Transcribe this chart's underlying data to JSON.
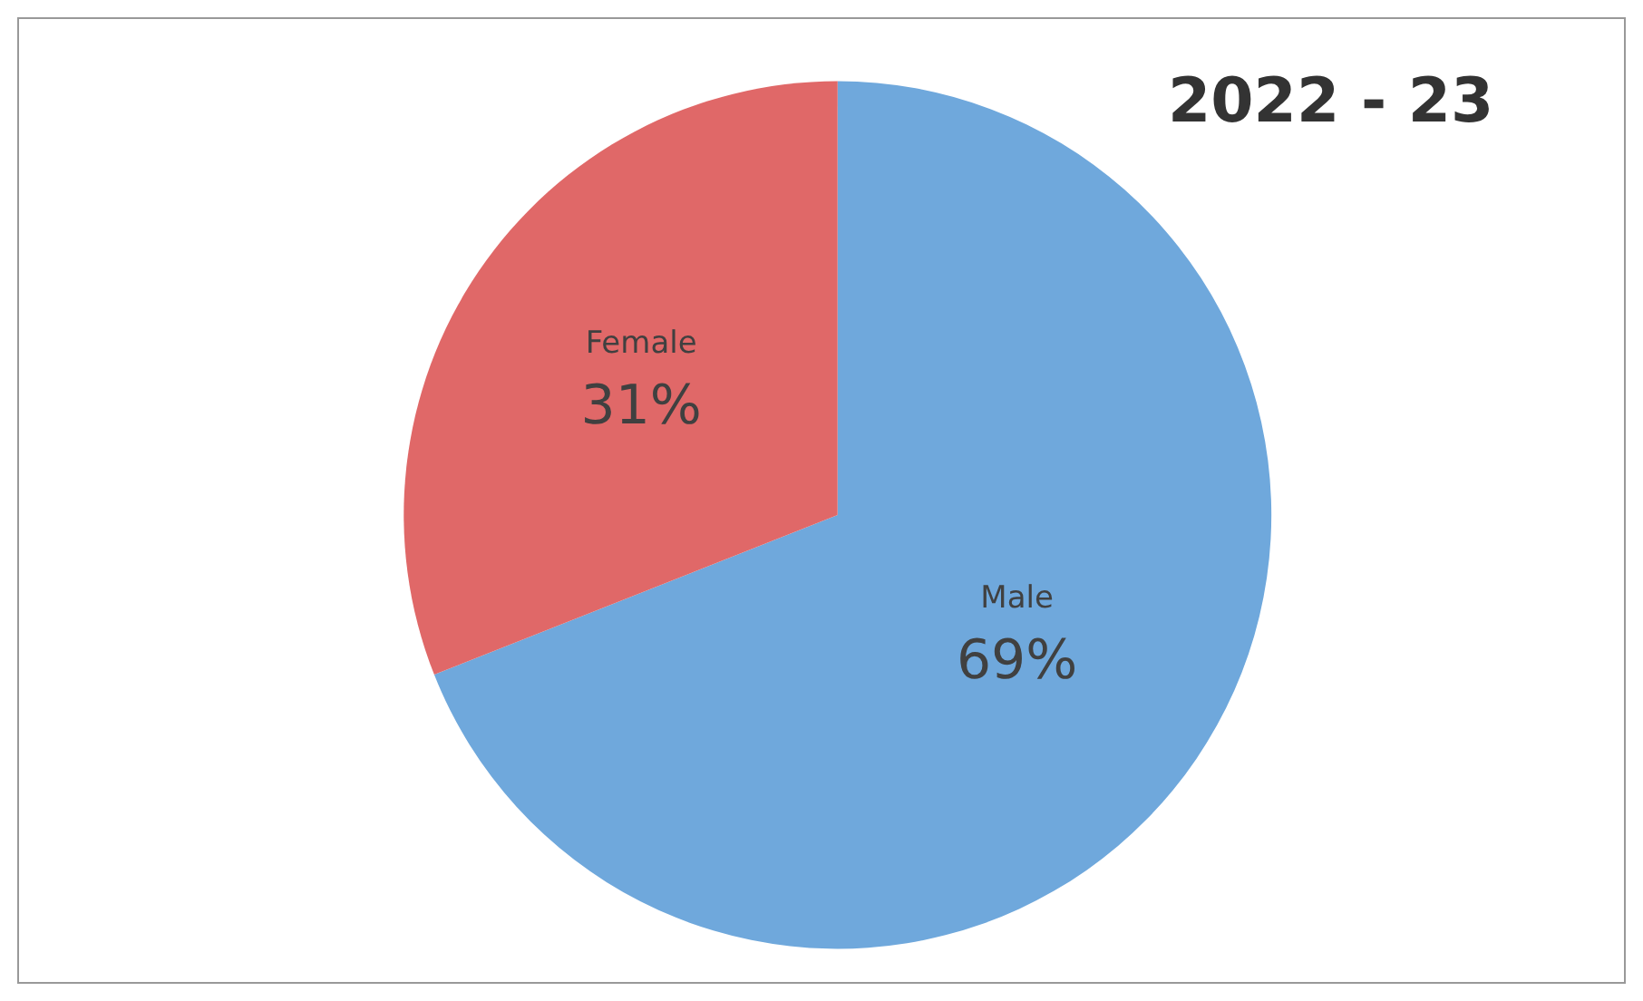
{
  "chart_data": {
    "type": "pie",
    "title": "2022 - 23",
    "categories": [
      "Male",
      "Female"
    ],
    "values": [
      69,
      31
    ],
    "colors": [
      "#6fa8dc",
      "#e06868"
    ],
    "value_labels": [
      "69%",
      "31%"
    ],
    "legend": false
  }
}
